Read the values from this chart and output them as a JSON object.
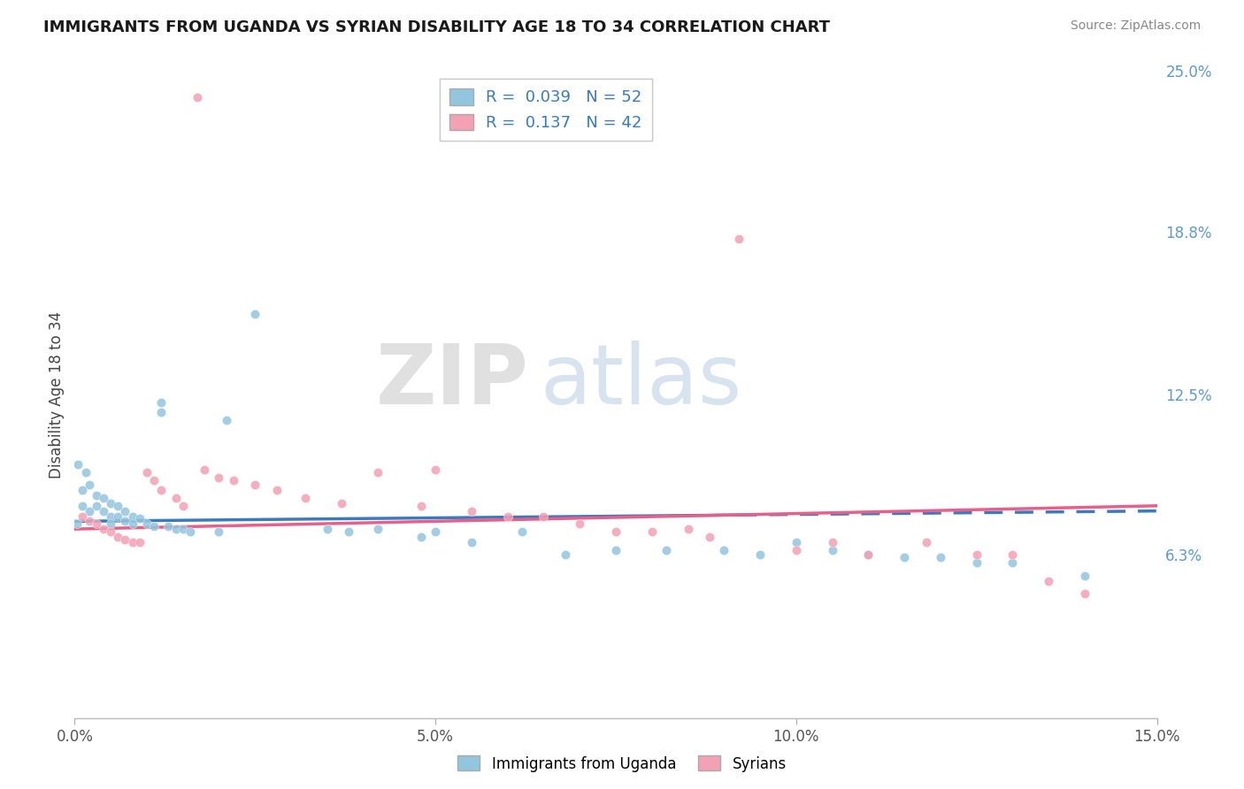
{
  "title": "IMMIGRANTS FROM UGANDA VS SYRIAN DISABILITY AGE 18 TO 34 CORRELATION CHART",
  "source": "Source: ZipAtlas.com",
  "ylabel": "Disability Age 18 to 34",
  "xlim": [
    0.0,
    0.15
  ],
  "ylim": [
    0.0,
    0.25
  ],
  "xtick_vals": [
    0.0,
    0.05,
    0.1,
    0.15
  ],
  "xtick_labels": [
    "0.0%",
    "5.0%",
    "10.0%",
    "15.0%"
  ],
  "ytick_vals": [
    0.063,
    0.125,
    0.188,
    0.25
  ],
  "ytick_labels": [
    "6.3%",
    "12.5%",
    "18.8%",
    "25.0%"
  ],
  "legend_r_n": [
    {
      "r": "0.039",
      "n": "52",
      "color": "#92c5de"
    },
    {
      "r": "0.137",
      "n": "42",
      "color": "#f4a0b5"
    }
  ],
  "watermark_zip": "ZIP",
  "watermark_atlas": "atlas",
  "uganda_color": "#92c5de",
  "syrian_color": "#f4a0b5",
  "uganda_trend_color": "#3a7abf",
  "syrian_trend_color": "#e8608a",
  "background_color": "#ffffff",
  "grid_color": "#dddddd",
  "uganda_points_x": [
    0.0003,
    0.0005,
    0.001,
    0.001,
    0.0015,
    0.002,
    0.002,
    0.003,
    0.003,
    0.004,
    0.004,
    0.005,
    0.005,
    0.005,
    0.006,
    0.006,
    0.007,
    0.007,
    0.008,
    0.008,
    0.009,
    0.01,
    0.011,
    0.012,
    0.012,
    0.013,
    0.014,
    0.015,
    0.016,
    0.02,
    0.021,
    0.025,
    0.035,
    0.038,
    0.042,
    0.048,
    0.05,
    0.055,
    0.062,
    0.068,
    0.075,
    0.082,
    0.09,
    0.095,
    0.1,
    0.105,
    0.11,
    0.115,
    0.12,
    0.125,
    0.13,
    0.14
  ],
  "uganda_points_y": [
    0.075,
    0.098,
    0.082,
    0.088,
    0.095,
    0.08,
    0.09,
    0.086,
    0.082,
    0.085,
    0.08,
    0.083,
    0.078,
    0.075,
    0.082,
    0.078,
    0.08,
    0.076,
    0.078,
    0.075,
    0.077,
    0.075,
    0.074,
    0.122,
    0.118,
    0.074,
    0.073,
    0.073,
    0.072,
    0.072,
    0.115,
    0.156,
    0.073,
    0.072,
    0.073,
    0.07,
    0.072,
    0.068,
    0.072,
    0.063,
    0.065,
    0.065,
    0.065,
    0.063,
    0.068,
    0.065,
    0.063,
    0.062,
    0.062,
    0.06,
    0.06,
    0.055
  ],
  "syrian_points_x": [
    0.001,
    0.002,
    0.003,
    0.004,
    0.005,
    0.006,
    0.007,
    0.008,
    0.009,
    0.01,
    0.011,
    0.012,
    0.014,
    0.015,
    0.017,
    0.018,
    0.02,
    0.022,
    0.025,
    0.028,
    0.032,
    0.037,
    0.042,
    0.048,
    0.05,
    0.055,
    0.06,
    0.065,
    0.07,
    0.075,
    0.08,
    0.085,
    0.088,
    0.092,
    0.1,
    0.105,
    0.11,
    0.118,
    0.125,
    0.13,
    0.135,
    0.14
  ],
  "syrian_points_y": [
    0.078,
    0.076,
    0.075,
    0.073,
    0.072,
    0.07,
    0.069,
    0.068,
    0.068,
    0.095,
    0.092,
    0.088,
    0.085,
    0.082,
    0.24,
    0.096,
    0.093,
    0.092,
    0.09,
    0.088,
    0.085,
    0.083,
    0.095,
    0.082,
    0.096,
    0.08,
    0.078,
    0.078,
    0.075,
    0.072,
    0.072,
    0.073,
    0.07,
    0.185,
    0.065,
    0.068,
    0.063,
    0.068,
    0.063,
    0.063,
    0.053,
    0.048
  ]
}
